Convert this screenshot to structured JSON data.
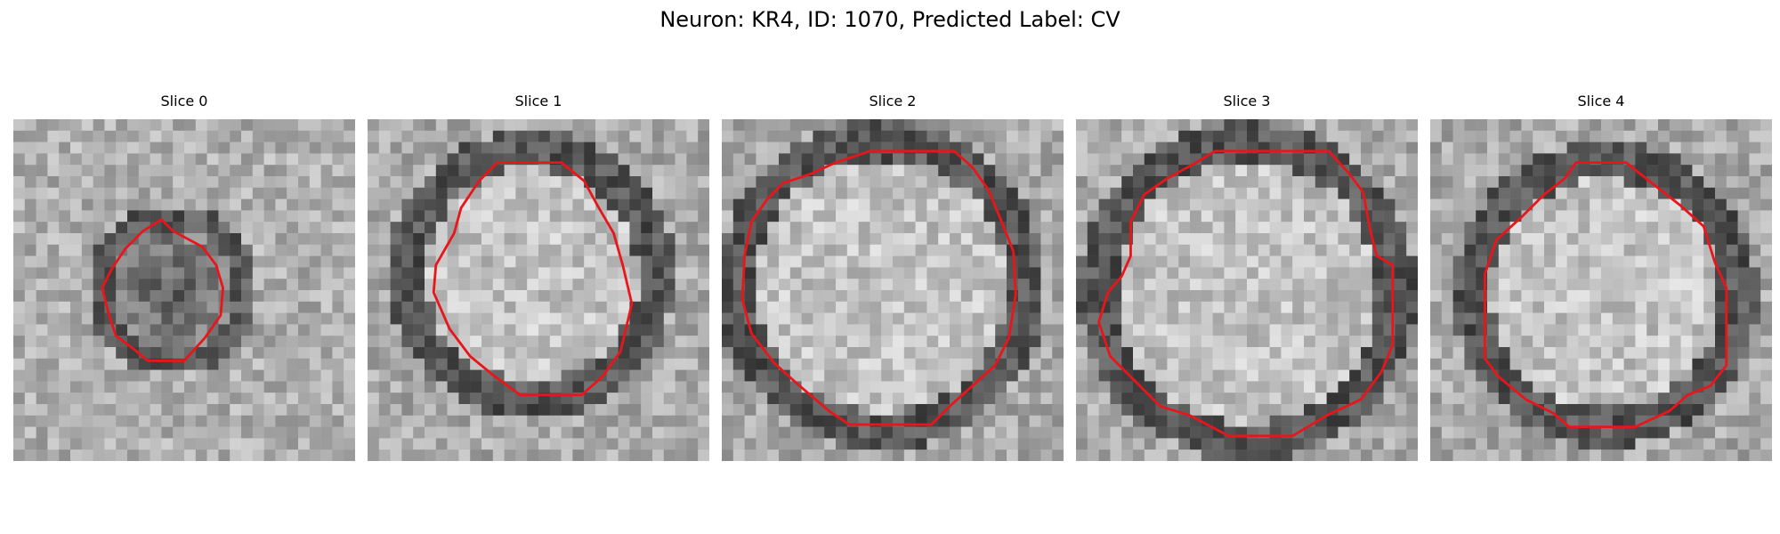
{
  "figure": {
    "title": "Neuron: KR4, ID: 1070, Predicted Label: CV",
    "contour_color": "#e8161b"
  },
  "panels": [
    {
      "title": "Slice 0"
    },
    {
      "title": "Slice 1"
    },
    {
      "title": "Slice 2"
    },
    {
      "title": "Slice 3"
    },
    {
      "title": "Slice 4"
    }
  ]
}
